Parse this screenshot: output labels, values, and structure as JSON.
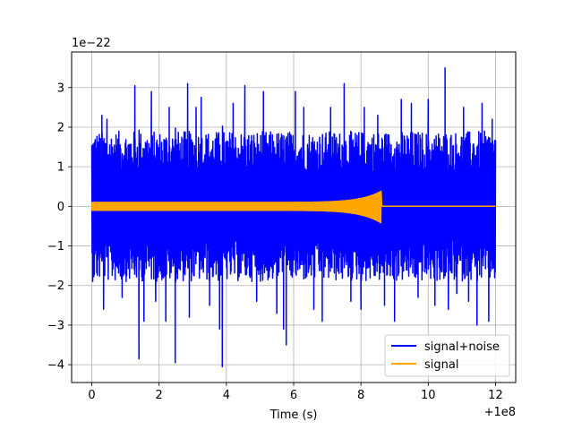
{
  "chart_data": {
    "type": "line",
    "xlabel": "Time (s)",
    "ylabel": "",
    "x_offset_label": "+1e8",
    "y_scale_label": "1e−22",
    "xlim": [
      -0.6,
      12.6
    ],
    "ylim": [
      -4.45,
      3.9
    ],
    "x_ticks": [
      0,
      2,
      4,
      6,
      8,
      10,
      12
    ],
    "x_tick_labels": [
      "0",
      "2",
      "4",
      "6",
      "8",
      "10",
      "12"
    ],
    "y_ticks": [
      -4,
      -3,
      -2,
      -1,
      0,
      1,
      2,
      3
    ],
    "y_tick_labels": [
      "−4",
      "−3",
      "−2",
      "−1",
      "0",
      "1",
      "2",
      "3"
    ],
    "grid": true,
    "legend_position": "lower-right",
    "series": [
      {
        "name": "signal+noise",
        "color": "#0000ff",
        "x_range": [
          0,
          12
        ],
        "typical_amplitude": 1.9,
        "spikes": [
          {
            "x": 0.3,
            "y": 2.3
          },
          {
            "x": 0.35,
            "y": -2.6
          },
          {
            "x": 0.45,
            "y": 2.2
          },
          {
            "x": 0.9,
            "y": -2.3
          },
          {
            "x": 1.28,
            "y": 3.05
          },
          {
            "x": 1.4,
            "y": -3.85
          },
          {
            "x": 1.55,
            "y": -2.9
          },
          {
            "x": 1.77,
            "y": 2.9
          },
          {
            "x": 1.9,
            "y": -2.4
          },
          {
            "x": 2.2,
            "y": -2.9
          },
          {
            "x": 2.3,
            "y": 2.5
          },
          {
            "x": 2.48,
            "y": -3.95
          },
          {
            "x": 2.85,
            "y": 3.1
          },
          {
            "x": 2.9,
            "y": -2.8
          },
          {
            "x": 3.1,
            "y": 2.5
          },
          {
            "x": 3.25,
            "y": 2.75
          },
          {
            "x": 3.5,
            "y": -2.5
          },
          {
            "x": 3.8,
            "y": -3.1
          },
          {
            "x": 3.88,
            "y": -4.05
          },
          {
            "x": 4.2,
            "y": 2.6
          },
          {
            "x": 4.55,
            "y": 3.05
          },
          {
            "x": 4.9,
            "y": -2.4
          },
          {
            "x": 5.1,
            "y": 2.9
          },
          {
            "x": 5.5,
            "y": -2.7
          },
          {
            "x": 5.7,
            "y": -3.1
          },
          {
            "x": 5.78,
            "y": -3.5
          },
          {
            "x": 6.05,
            "y": 2.9
          },
          {
            "x": 6.3,
            "y": 2.5
          },
          {
            "x": 6.6,
            "y": -2.6
          },
          {
            "x": 6.85,
            "y": -2.9
          },
          {
            "x": 7.1,
            "y": 2.5
          },
          {
            "x": 7.5,
            "y": 3.1
          },
          {
            "x": 7.7,
            "y": -2.4
          },
          {
            "x": 8.0,
            "y": -2.6
          },
          {
            "x": 8.1,
            "y": 2.5
          },
          {
            "x": 8.5,
            "y": 2.3
          },
          {
            "x": 8.7,
            "y": -2.5
          },
          {
            "x": 9.0,
            "y": -2.9
          },
          {
            "x": 9.2,
            "y": 2.7
          },
          {
            "x": 9.5,
            "y": 2.6
          },
          {
            "x": 9.7,
            "y": -2.3
          },
          {
            "x": 10.0,
            "y": 2.7
          },
          {
            "x": 10.2,
            "y": -2.5
          },
          {
            "x": 10.5,
            "y": 3.5
          },
          {
            "x": 10.6,
            "y": -2.6
          },
          {
            "x": 10.85,
            "y": -2.2
          },
          {
            "x": 11.05,
            "y": 2.5
          },
          {
            "x": 11.2,
            "y": -2.4
          },
          {
            "x": 11.45,
            "y": -3.0
          },
          {
            "x": 11.6,
            "y": 2.6
          },
          {
            "x": 11.8,
            "y": -2.9
          },
          {
            "x": 11.9,
            "y": 2.2
          }
        ]
      },
      {
        "name": "signal",
        "color": "#ffa500",
        "x_range": [
          0,
          12
        ],
        "chirp": {
          "merger_time": 8.6,
          "base_amplitude": 0.1,
          "peak_upper": 0.38,
          "peak_lower": -0.42,
          "after_merger": 0.0
        }
      }
    ]
  }
}
